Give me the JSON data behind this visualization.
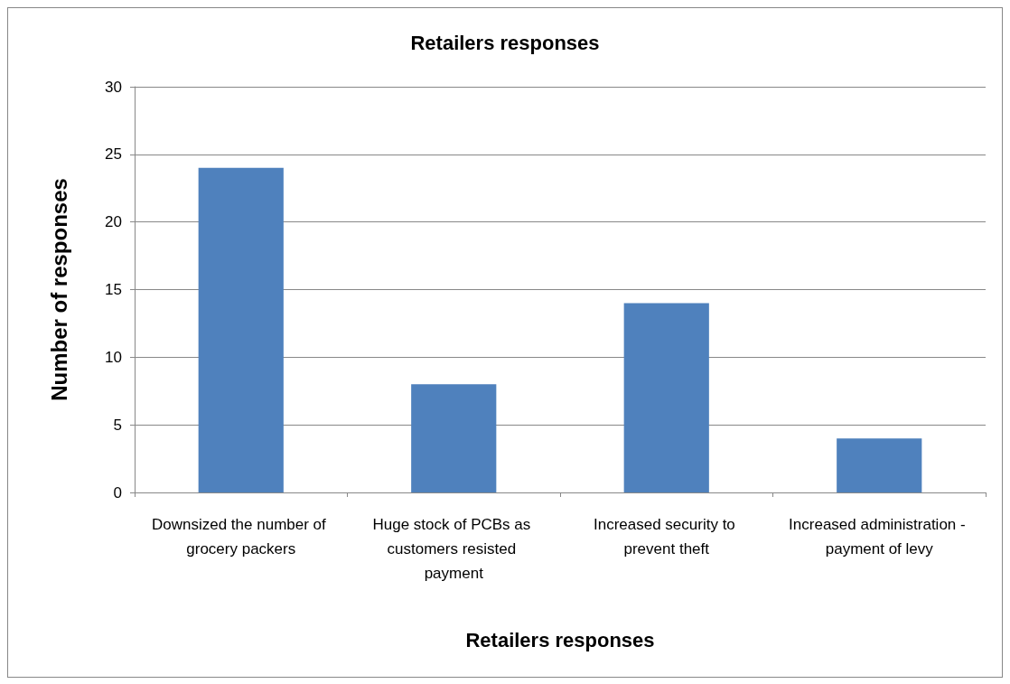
{
  "chart_data": {
    "type": "bar",
    "title": "Retailers responses",
    "xlabel": "Retailers responses",
    "ylabel": "Number of responses",
    "categories": [
      "Downsized the number of grocery packers",
      "Huge stock of PCBs as customers resisted payment",
      "Increased security to prevent theft",
      "Increased administration - payment of levy"
    ],
    "values": [
      24,
      8,
      14,
      4
    ],
    "color": "#4f81bd",
    "ylim": [
      0,
      30
    ],
    "yticks": [
      0,
      5,
      10,
      15,
      20,
      25,
      30
    ],
    "grid": "y"
  }
}
